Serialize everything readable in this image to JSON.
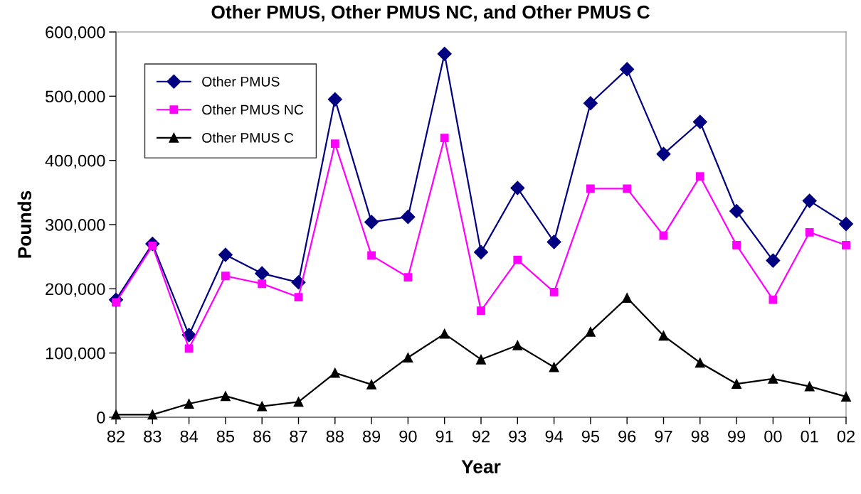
{
  "chart_data": {
    "type": "line",
    "title": "Other PMUS, Other PMUS NC, and Other PMUS C",
    "xlabel": "Year",
    "ylabel": "Pounds",
    "categories": [
      "82",
      "83",
      "84",
      "85",
      "86",
      "87",
      "88",
      "89",
      "90",
      "91",
      "92",
      "93",
      "94",
      "95",
      "96",
      "97",
      "98",
      "99",
      "00",
      "01",
      "02"
    ],
    "series": [
      {
        "name": "Other PMUS",
        "color": "#000080",
        "marker": "diamond",
        "values": [
          183000,
          270000,
          128000,
          253000,
          224000,
          210000,
          495000,
          304000,
          312000,
          566000,
          257000,
          357000,
          273000,
          489000,
          542000,
          410000,
          460000,
          321000,
          244000,
          337000,
          301000
        ]
      },
      {
        "name": "Other PMUS NC",
        "color": "#ff00ff",
        "marker": "square",
        "values": [
          179000,
          267000,
          107000,
          220000,
          208000,
          187000,
          426000,
          252000,
          218000,
          435000,
          166000,
          245000,
          195000,
          356000,
          356000,
          283000,
          375000,
          268000,
          183000,
          288000,
          268000
        ]
      },
      {
        "name": "Other PMUS C",
        "color": "#000000",
        "marker": "triangle",
        "values": [
          4000,
          4000,
          21000,
          33000,
          17000,
          24000,
          69000,
          51000,
          93000,
          130000,
          90000,
          112000,
          78000,
          133000,
          186000,
          127000,
          85000,
          52000,
          60000,
          48000,
          32000
        ]
      }
    ],
    "ylim": [
      0,
      600000
    ],
    "yticks": [
      {
        "value": 0,
        "label": "0"
      },
      {
        "value": 100000,
        "label": "100,000"
      },
      {
        "value": 200000,
        "label": "200,000"
      },
      {
        "value": 300000,
        "label": "300,000"
      },
      {
        "value": 400000,
        "label": "400,000"
      },
      {
        "value": 500000,
        "label": "500,000"
      },
      {
        "value": 600000,
        "label": "600,000"
      }
    ],
    "grid": false,
    "legend": "top left",
    "line_style": "solid"
  }
}
